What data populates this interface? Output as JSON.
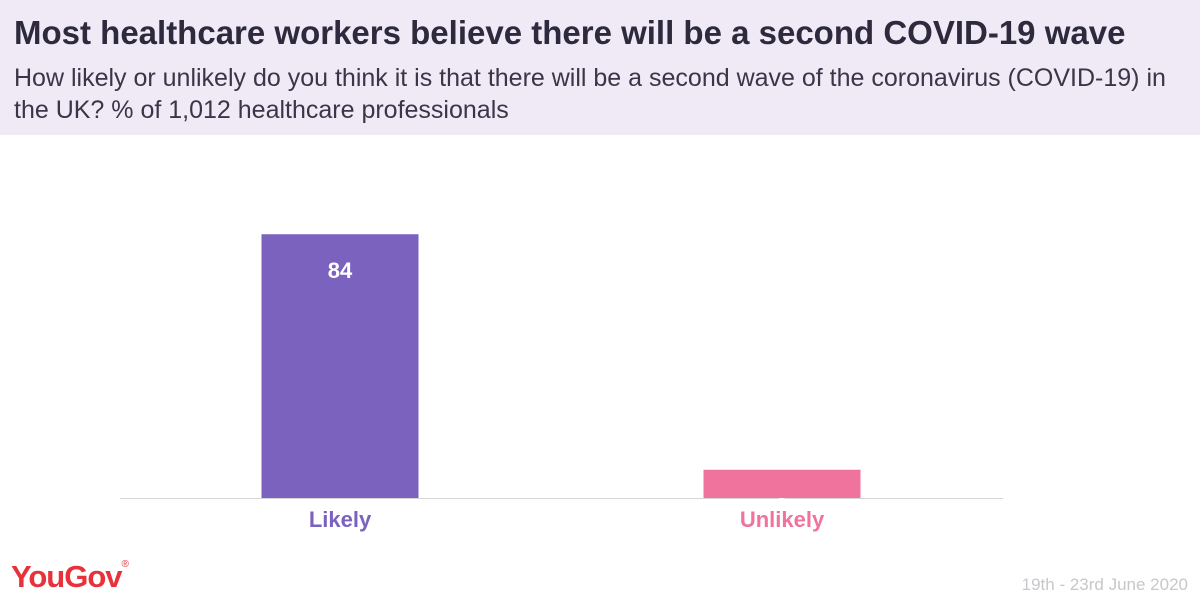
{
  "header": {
    "title": "Most healthcare workers believe there will be a second COVID-19 wave",
    "subtitle": "How likely or unlikely do you think it is that there will be a second wave of the coronavirus (COVID-19) in the UK? % of 1,012 healthcare professionals"
  },
  "chart_data": {
    "type": "bar",
    "categories": [
      "Likely",
      "Unlikely"
    ],
    "values": [
      84,
      9
    ],
    "ylim": [
      0,
      100
    ],
    "colors": [
      "#7b62bf",
      "#f0739e"
    ],
    "grid": false,
    "legend": "none"
  },
  "footer": {
    "logo_text": "YouGov",
    "logo_mark": "®",
    "date": "19th - 23rd June 2020"
  }
}
